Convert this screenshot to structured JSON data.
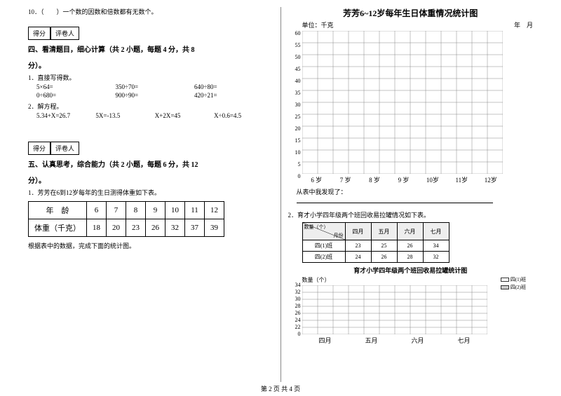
{
  "q10": "10．（　　）一个数的因数和倍数都有无数个。",
  "score": {
    "col1": "得分",
    "col2": "评卷人"
  },
  "section4": {
    "title": "四、看清题目，细心计算（共 2 小题，每题 4 分，共 8",
    "points": "分）。"
  },
  "sub1": "1．直接写得数。",
  "calc": {
    "r1": [
      "5×64=",
      "350÷70=",
      "640÷80="
    ],
    "r2": [
      "0÷680=",
      "900÷90=",
      "420÷21="
    ]
  },
  "sub2": "2．解方程。",
  "eq": [
    "5.34+X=26.7",
    "5X=-13.5",
    "X+2X=45",
    "X÷0.6=4.5"
  ],
  "section5": {
    "title": "五、认真思考，综合能力（共 2 小题，每题 6 分，共 12",
    "points": "分）。"
  },
  "q5_1": "1．芳芳在6到12岁每年的生日测得体重如下表。",
  "table1": {
    "headers": [
      "年　龄",
      "6",
      "7",
      "8",
      "9",
      "10",
      "11",
      "12"
    ],
    "row": [
      "体重（千克）",
      "18",
      "20",
      "23",
      "26",
      "32",
      "37",
      "39"
    ]
  },
  "after_table": "根据表中的数据，完成下面的统计图。",
  "chart1": {
    "title": "芳芳6~12岁每年生日体重情况统计图",
    "unit": "单位：千克",
    "date": "年　月",
    "y": [
      "60",
      "55",
      "50",
      "45",
      "40",
      "35",
      "30",
      "25",
      "20",
      "15",
      "10",
      "5",
      "0"
    ],
    "x": [
      "6 岁",
      "7 岁",
      "8 岁",
      "9 岁",
      "10岁",
      "11岁",
      "12岁"
    ],
    "grid": {
      "cols": 13,
      "rows": 12,
      "cellW": 22,
      "cellH": 17
    }
  },
  "found_label": "从表中我发现了：",
  "q5_2": "2．育才小学四年级两个班回收易拉罐情况如下表。",
  "table2": {
    "diag_tl": "数量（个）",
    "diag_br": "月份",
    "diag_left": "班级",
    "months": [
      "四月",
      "五月",
      "六月",
      "七月"
    ],
    "rows": [
      {
        "label": "四(1)班",
        "vals": [
          "23",
          "25",
          "26",
          "34"
        ]
      },
      {
        "label": "四(2)班",
        "vals": [
          "24",
          "26",
          "28",
          "32"
        ]
      }
    ]
  },
  "chart2": {
    "title": "育才小学四年级两个班回收易拉罐统计图",
    "ylabel": "数量（个）",
    "y": [
      "34",
      "32",
      "30",
      "28",
      "26",
      "24",
      "22",
      "0"
    ],
    "x": [
      "四月",
      "五月",
      "六月",
      "七月"
    ],
    "legend": [
      "四(1)班",
      "四(2)班"
    ],
    "legend_colors": [
      "#ffffff",
      "#cccccc"
    ],
    "grid": {
      "cols": 12,
      "rows": 7,
      "cellW": 22,
      "cellH": 10
    }
  },
  "footer": "第 2 页 共 4 页"
}
